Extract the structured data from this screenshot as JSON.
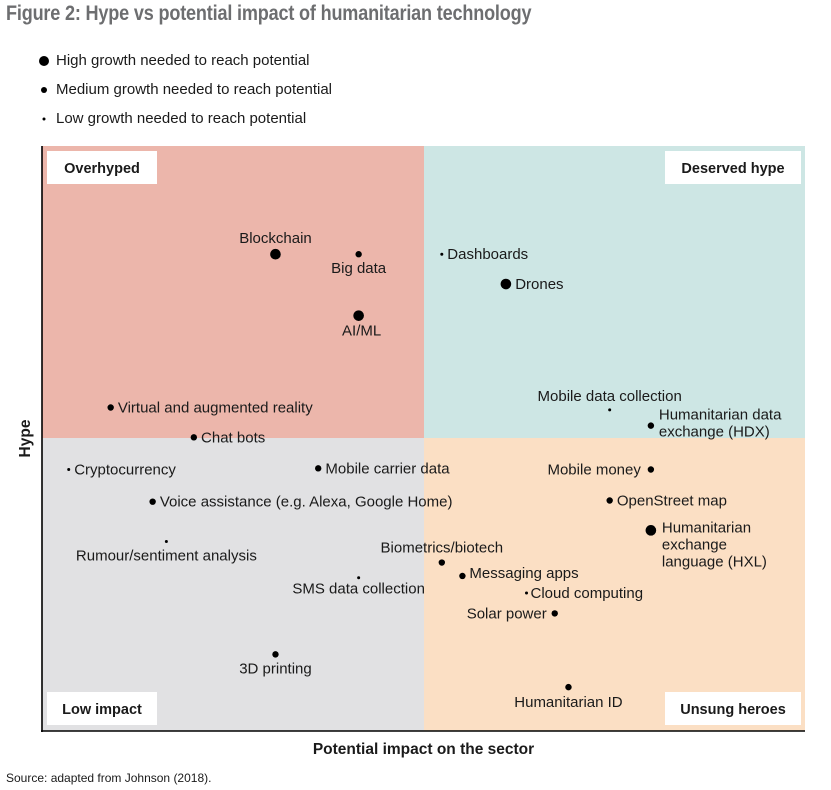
{
  "title": "Figure 2: Hype vs potential impact of humanitarian technology",
  "legend": [
    {
      "label": "High growth needed to reach potential",
      "size": "high"
    },
    {
      "label": "Medium growth needed to reach potential",
      "size": "medium"
    },
    {
      "label": "Low growth needed to reach potential",
      "size": "low"
    }
  ],
  "source": "Source: adapted from Johnson (2018).",
  "colors": {
    "overhyped": "#ecb6ab",
    "deserved_hype": "#cde6e4",
    "low_impact": "#e1e1e3",
    "unsung_heroes": "#fbdfc4",
    "title": "#6d6e70"
  },
  "chart_data": {
    "type": "scatter",
    "title": "Hype vs potential impact of humanitarian technology",
    "xlabel": "Potential impact on the sector",
    "ylabel": "Hype",
    "xlim": [
      0,
      100
    ],
    "ylim": [
      0,
      100
    ],
    "grid": false,
    "quadrants": [
      {
        "label": "Overhyped",
        "position": "top-left"
      },
      {
        "label": "Deserved hype",
        "position": "top-right"
      },
      {
        "label": "Low impact",
        "position": "bottom-left"
      },
      {
        "label": "Unsung heroes",
        "position": "bottom-right"
      }
    ],
    "points": [
      {
        "label": "Blockchain",
        "x": 30.6,
        "y": 81.5,
        "size": "high",
        "label_pos": "top"
      },
      {
        "label": "Big data",
        "x": 41.5,
        "y": 81.5,
        "size": "medium",
        "label_pos": "bottom"
      },
      {
        "label": "AI/ML",
        "x": 41.5,
        "y": 71.0,
        "size": "high",
        "label_pos": "bottom"
      },
      {
        "label": "Dashboards",
        "x": 52.4,
        "y": 81.5,
        "size": "low",
        "label_pos": "right"
      },
      {
        "label": "Drones",
        "x": 60.8,
        "y": 76.4,
        "size": "high",
        "label_pos": "right"
      },
      {
        "label": "Mobile data collection",
        "x": 74.4,
        "y": 54.9,
        "size": "low",
        "label_pos": "top"
      },
      {
        "label": "Humanitarian data exchange (HDX)",
        "x": 79.8,
        "y": 52.2,
        "size": "medium",
        "label_pos": "right"
      },
      {
        "label": "Virtual and augmented reality",
        "x": 9.0,
        "y": 55.3,
        "size": "medium",
        "label_pos": "right"
      },
      {
        "label": "Chat bots",
        "x": 19.9,
        "y": 50.2,
        "size": "medium",
        "label_pos": "right"
      },
      {
        "label": "Cryptocurrency",
        "x": 3.5,
        "y": 44.7,
        "size": "low",
        "label_pos": "right"
      },
      {
        "label": "Mobile carrier data",
        "x": 36.2,
        "y": 44.9,
        "size": "medium",
        "label_pos": "right"
      },
      {
        "label": "Voice assistance (e.g. Alexa, Google Home)",
        "x": 14.5,
        "y": 39.2,
        "size": "medium",
        "label_pos": "right"
      },
      {
        "label": "Rumour/sentiment analysis",
        "x": 16.3,
        "y": 32.4,
        "size": "low",
        "label_pos": "bottom"
      },
      {
        "label": "SMS data collection",
        "x": 41.5,
        "y": 26.2,
        "size": "low",
        "label_pos": "bottom"
      },
      {
        "label": "3D printing",
        "x": 30.6,
        "y": 13.1,
        "size": "medium",
        "label_pos": "bottom"
      },
      {
        "label": "Mobile money",
        "x": 79.8,
        "y": 44.7,
        "size": "medium",
        "label_pos": "left"
      },
      {
        "label": "OpenStreet map",
        "x": 74.4,
        "y": 39.4,
        "size": "medium",
        "label_pos": "right"
      },
      {
        "label": "Humanitarian exchange language (HXL)",
        "x": 79.8,
        "y": 34.3,
        "size": "high",
        "label_pos": "right"
      },
      {
        "label": "Biometrics/biotech",
        "x": 52.4,
        "y": 28.8,
        "size": "medium",
        "label_pos": "top"
      },
      {
        "label": "Messaging apps",
        "x": 55.1,
        "y": 26.5,
        "size": "medium",
        "label_pos": "right"
      },
      {
        "label": "Cloud computing",
        "x": 63.5,
        "y": 23.6,
        "size": "low",
        "label_pos": "right"
      },
      {
        "label": "Solar power",
        "x": 67.2,
        "y": 20.1,
        "size": "medium",
        "label_pos": "left"
      },
      {
        "label": "Humanitarian ID",
        "x": 69.0,
        "y": 7.5,
        "size": "medium",
        "label_pos": "bottom"
      }
    ]
  }
}
